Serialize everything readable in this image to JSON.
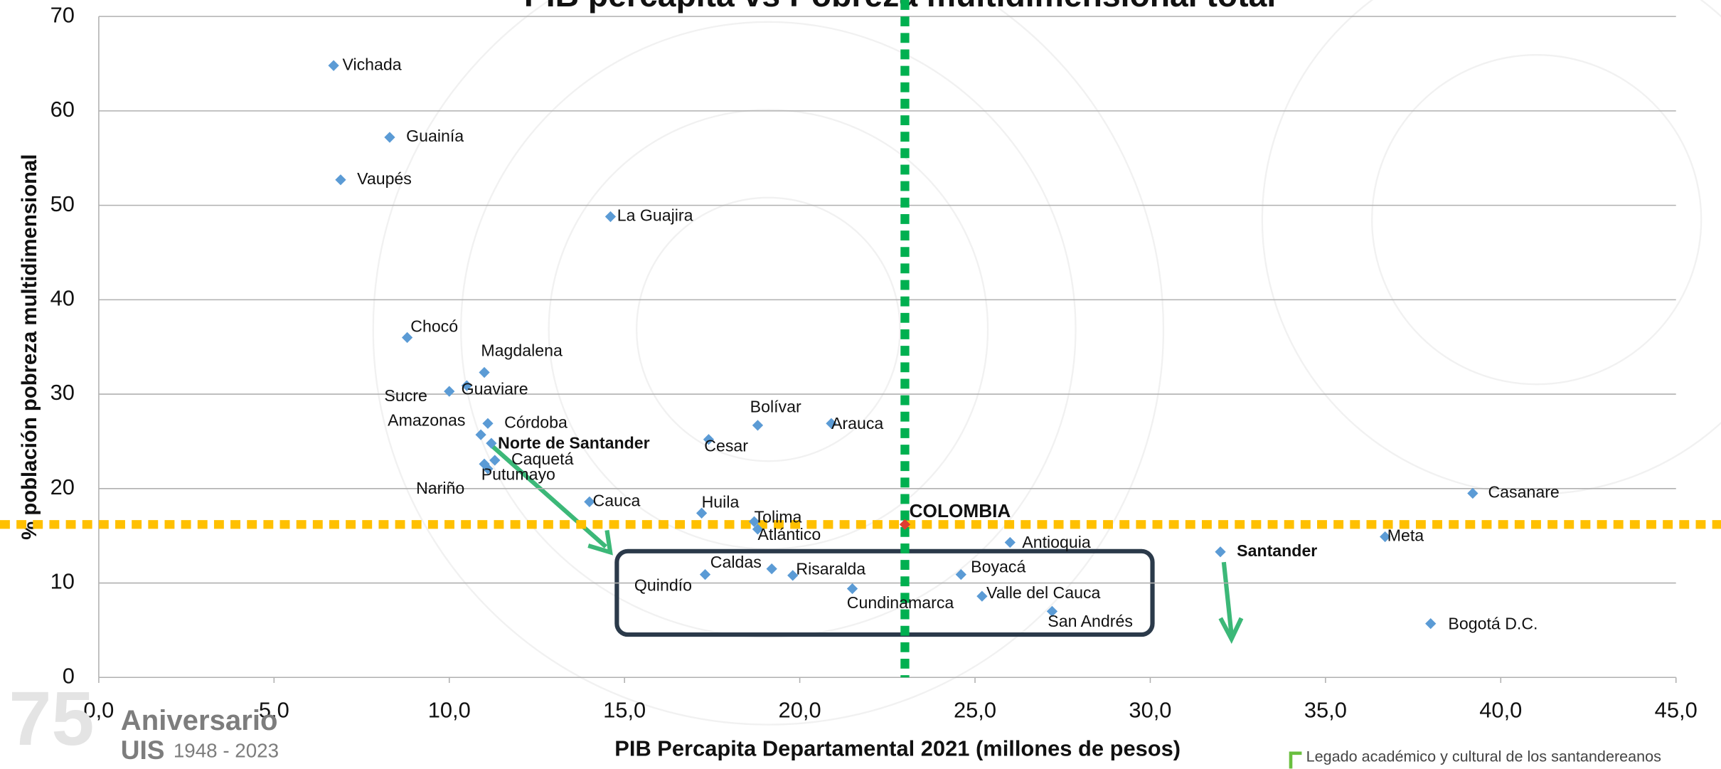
{
  "chart_data": {
    "type": "scatter",
    "title": "PIB percapita vs Pobreza multidimensional total",
    "x_label": "PIB Percapita Departamental 2021 (millones de pesos)",
    "y_label": "% población pobreza multidimensional",
    "labels": [
      "Vichada",
      "Guainía",
      "Vaupés",
      "La Guajira",
      "Chocó",
      "Magdalena",
      "Guaviare",
      "Sucre",
      "Córdoba",
      "Amazonas",
      "Norte de Santander",
      "Caquetá",
      "Putumayo",
      "Nariño",
      "Cesar",
      "Bolívar",
      "Arauca",
      "Cauca",
      "Huila",
      "Tolima",
      "Atlántico",
      "COLOMBIA",
      "Antioquia",
      "Santander",
      "Meta",
      "Casanare",
      "Bogotá D.C.",
      "Caldas",
      "Quindío",
      "Risaralda",
      "Cundinamarca",
      "Boyacá",
      "Valle del Cauca",
      "San Andrés"
    ],
    "x": [
      6.7,
      8.3,
      6.9,
      14.6,
      8.8,
      11.0,
      10.5,
      10.0,
      11.1,
      10.9,
      11.2,
      11.3,
      11.1,
      11.0,
      17.4,
      18.8,
      20.9,
      14.0,
      17.2,
      18.7,
      18.8,
      23.0,
      26.0,
      32.0,
      36.7,
      39.2,
      38.0,
      19.2,
      17.3,
      19.8,
      21.5,
      24.6,
      25.2,
      27.2
    ],
    "values": [
      64.8,
      57.2,
      52.7,
      48.8,
      36.0,
      32.3,
      30.9,
      30.3,
      26.9,
      25.7,
      24.8,
      23.0,
      22.1,
      22.6,
      25.2,
      26.7,
      26.9,
      18.6,
      17.4,
      16.5,
      15.7,
      16.2,
      14.3,
      13.3,
      14.9,
      19.5,
      5.7,
      11.5,
      10.9,
      10.8,
      9.4,
      10.9,
      8.6,
      7.0
    ],
    "color": "#5b9bd5",
    "highlight_color": "#e03c31",
    "highlight": "COLOMBIA",
    "bold_labels": [
      "Norte de Santander",
      "COLOMBIA",
      "Santander"
    ],
    "xlim": [
      0,
      45
    ],
    "ylim": [
      0,
      70
    ],
    "xticks": [
      {
        "value": 0,
        "label": "0,0"
      },
      {
        "value": 5,
        "label": "5,0"
      },
      {
        "value": 10,
        "label": "10,0"
      },
      {
        "value": 15,
        "label": "15,0"
      },
      {
        "value": 20,
        "label": "20,0"
      },
      {
        "value": 25,
        "label": "25,0"
      },
      {
        "value": 30,
        "label": "30,0"
      },
      {
        "value": 35,
        "label": "35,0"
      },
      {
        "value": 40,
        "label": "40,0"
      },
      {
        "value": 45,
        "label": "45,0"
      }
    ],
    "yticks": [
      0,
      10,
      20,
      30,
      40,
      50,
      60,
      70
    ],
    "grid": true,
    "reference_x": 23.0,
    "reference_x_color": "#00b050",
    "reference_y": 16.2,
    "reference_y_color": "#ffc000"
  },
  "footer": {
    "logo_word": "Aniversario",
    "logo_org": "UIS",
    "logo_years": "1948 - 2023",
    "tagline": "Legado académico y cultural de los santandereanos"
  }
}
